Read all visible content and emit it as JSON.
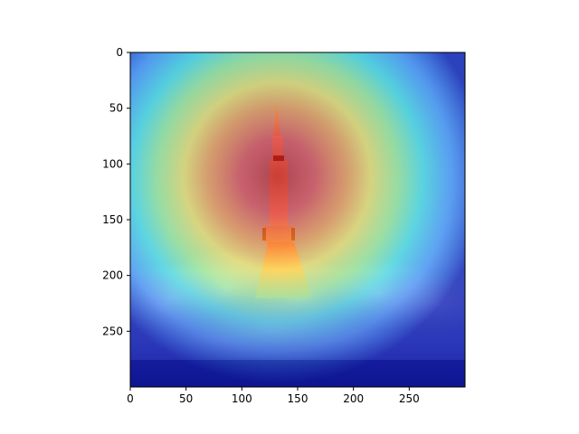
{
  "chart_data": {
    "type": "heatmap",
    "title": "",
    "xlabel": "",
    "ylabel": "",
    "xlim": [
      0,
      300
    ],
    "ylim": [
      300,
      0
    ],
    "xticks": [
      0,
      50,
      100,
      150,
      200,
      250
    ],
    "yticks": [
      0,
      50,
      100,
      150,
      200,
      250
    ],
    "colormap": "jet",
    "background": "rocket launch photograph with attention heatmap overlay",
    "hotspot_center": [
      130,
      105
    ],
    "grid": false,
    "colors": {
      "frame": "#000000",
      "jet_low": "#00007f",
      "jet_mid": "#7fff7f",
      "jet_high": "#7f0000"
    }
  }
}
